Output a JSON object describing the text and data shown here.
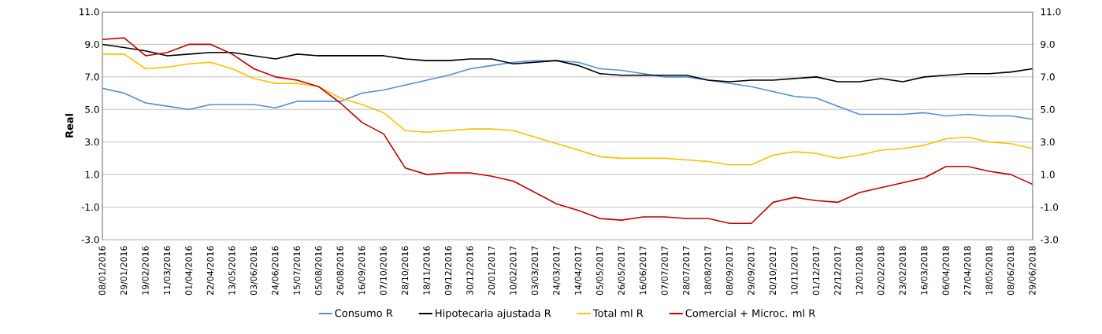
{
  "chart_data": {
    "type": "line",
    "ylabel": "Real",
    "x": [
      "2016-01-08",
      "2016-01-29",
      "2016-02-19",
      "2016-03-11",
      "2016-04-01",
      "2016-04-22",
      "2016-05-13",
      "2016-06-03",
      "2016-06-24",
      "2016-07-15",
      "2016-08-05",
      "2016-08-26",
      "2016-09-16",
      "2016-10-07",
      "2016-10-28",
      "2016-11-18",
      "2016-12-09",
      "2016-12-30",
      "2017-01-20",
      "2017-02-10",
      "2017-03-03",
      "2017-03-24",
      "2017-04-14",
      "2017-05-05",
      "2017-05-26",
      "2017-06-16",
      "2017-07-07",
      "2017-07-28",
      "2017-08-18",
      "2017-09-08",
      "2017-09-29",
      "2017-10-20",
      "2017-11-10",
      "2017-12-01",
      "2017-12-22",
      "2018-01-12",
      "2018-02-02",
      "2018-02-23",
      "2018-03-16",
      "2018-04-06",
      "2018-04-27",
      "2018-05-18",
      "2018-06-08",
      "2018-06-29"
    ],
    "series": [
      {
        "name": "Consumo R",
        "color": "#558ed5",
        "values": [
          6.3,
          6.0,
          5.4,
          5.2,
          5.0,
          5.3,
          5.3,
          5.3,
          5.1,
          5.5,
          5.5,
          5.5,
          6.0,
          6.2,
          6.5,
          6.8,
          7.1,
          7.5,
          7.7,
          7.9,
          8.0,
          8.0,
          7.9,
          7.5,
          7.4,
          7.2,
          7.0,
          7.0,
          6.8,
          6.6,
          6.4,
          6.1,
          5.8,
          5.7,
          5.2,
          4.7,
          4.7,
          4.7,
          4.8,
          4.6,
          4.7,
          4.6,
          4.6,
          4.4
        ]
      },
      {
        "name": "Hipotecaria ajustada R",
        "color": "#000000",
        "values": [
          9.0,
          8.8,
          8.6,
          8.3,
          8.4,
          8.5,
          8.5,
          8.3,
          8.1,
          8.4,
          8.3,
          8.3,
          8.3,
          8.3,
          8.1,
          8.0,
          8.0,
          8.1,
          8.1,
          7.8,
          7.9,
          8.0,
          7.7,
          7.2,
          7.1,
          7.1,
          7.1,
          7.1,
          6.8,
          6.7,
          6.8,
          6.8,
          6.9,
          7.0,
          6.7,
          6.7,
          6.9,
          6.7,
          7.0,
          7.1,
          7.2,
          7.2,
          7.3,
          7.5
        ]
      },
      {
        "name": "Total ml R",
        "color": "#ffc000",
        "values": [
          8.4,
          8.4,
          7.5,
          7.6,
          7.8,
          7.9,
          7.5,
          6.9,
          6.6,
          6.6,
          6.4,
          5.7,
          5.3,
          4.8,
          3.7,
          3.6,
          3.7,
          3.8,
          3.8,
          3.7,
          3.3,
          2.9,
          2.5,
          2.1,
          2.0,
          2.0,
          2.0,
          1.9,
          1.8,
          1.6,
          1.6,
          2.2,
          2.4,
          2.3,
          2.0,
          2.2,
          2.5,
          2.6,
          2.8,
          3.2,
          3.3,
          3.0,
          2.9,
          2.6
        ]
      },
      {
        "name": "Comercial + Microc. ml R",
        "color": "#c00000",
        "values": [
          9.3,
          9.4,
          8.3,
          8.5,
          9.0,
          9.0,
          8.4,
          7.5,
          7.0,
          6.8,
          6.4,
          5.4,
          4.2,
          3.5,
          1.4,
          1.0,
          1.1,
          1.1,
          0.9,
          0.6,
          -0.1,
          -0.8,
          -1.2,
          -1.7,
          -1.8,
          -1.6,
          -1.6,
          -1.7,
          -1.7,
          -2.0,
          -2.0,
          -0.7,
          -0.4,
          -0.6,
          -0.7,
          -0.1,
          0.2,
          0.5,
          0.8,
          1.5,
          1.5,
          1.2,
          1.0,
          0.4
        ]
      }
    ],
    "xlim": [
      "2016-01-08",
      "2018-06-29"
    ],
    "xticks": [
      {
        "value": "2016-01-08",
        "label": "08/01/2016"
      },
      {
        "value": "2016-01-29",
        "label": "29/01/2016"
      },
      {
        "value": "2016-02-19",
        "label": "19/02/2016"
      },
      {
        "value": "2016-03-11",
        "label": "11/03/2016"
      },
      {
        "value": "2016-04-01",
        "label": "01/04/2016"
      },
      {
        "value": "2016-04-22",
        "label": "22/04/2016"
      },
      {
        "value": "2016-05-13",
        "label": "13/05/2016"
      },
      {
        "value": "2016-06-03",
        "label": "03/06/2016"
      },
      {
        "value": "2016-06-24",
        "label": "24/06/2016"
      },
      {
        "value": "2016-07-15",
        "label": "15/07/2016"
      },
      {
        "value": "2016-08-05",
        "label": "05/08/2016"
      },
      {
        "value": "2016-08-26",
        "label": "26/08/2016"
      },
      {
        "value": "2016-09-16",
        "label": "16/09/2016"
      },
      {
        "value": "2016-10-07",
        "label": "07/10/2016"
      },
      {
        "value": "2016-10-28",
        "label": "28/10/2016"
      },
      {
        "value": "2016-11-18",
        "label": "18/11/2016"
      },
      {
        "value": "2016-12-09",
        "label": "09/12/2016"
      },
      {
        "value": "2016-12-30",
        "label": "30/12/2016"
      },
      {
        "value": "2017-01-20",
        "label": "20/01/2017"
      },
      {
        "value": "2017-02-10",
        "label": "10/02/2017"
      },
      {
        "value": "2017-03-03",
        "label": "03/03/2017"
      },
      {
        "value": "2017-03-24",
        "label": "24/03/2017"
      },
      {
        "value": "2017-04-14",
        "label": "14/04/2017"
      },
      {
        "value": "2017-05-05",
        "label": "05/05/2017"
      },
      {
        "value": "2017-05-26",
        "label": "26/05/2017"
      },
      {
        "value": "2017-06-16",
        "label": "16/06/2017"
      },
      {
        "value": "2017-07-07",
        "label": "07/07/2017"
      },
      {
        "value": "2017-07-28",
        "label": "28/07/2017"
      },
      {
        "value": "2017-08-18",
        "label": "18/08/2017"
      },
      {
        "value": "2017-09-08",
        "label": "08/09/2017"
      },
      {
        "value": "2017-09-29",
        "label": "29/09/2017"
      },
      {
        "value": "2017-10-20",
        "label": "20/10/2017"
      },
      {
        "value": "2017-11-10",
        "label": "10/11/2017"
      },
      {
        "value": "2017-12-01",
        "label": "01/12/2017"
      },
      {
        "value": "2017-12-22",
        "label": "22/12/2017"
      },
      {
        "value": "2018-01-12",
        "label": "12/01/2018"
      },
      {
        "value": "2018-02-02",
        "label": "02/02/2018"
      },
      {
        "value": "2018-02-23",
        "label": "23/02/2018"
      },
      {
        "value": "2018-03-16",
        "label": "16/03/2018"
      },
      {
        "value": "2018-04-06",
        "label": "06/04/2018"
      },
      {
        "value": "2018-04-27",
        "label": "27/04/2018"
      },
      {
        "value": "2018-05-18",
        "label": "18/05/2018"
      },
      {
        "value": "2018-06-08",
        "label": "08/06/2018"
      },
      {
        "value": "2018-06-29",
        "label": "29/06/2018"
      }
    ],
    "ylim": [
      -3,
      11
    ],
    "yticks": [
      {
        "value": -3,
        "label": "-3.0"
      },
      {
        "value": -1,
        "label": "-1.0"
      },
      {
        "value": 1,
        "label": "1.0"
      },
      {
        "value": 3,
        "label": "3.0"
      },
      {
        "value": 5,
        "label": "5.0"
      },
      {
        "value": 7,
        "label": "7.0"
      },
      {
        "value": 9,
        "label": "9.0"
      },
      {
        "value": 11,
        "label": "11.0"
      }
    ],
    "y2lim": [
      -3,
      11
    ],
    "y2ticks": [
      {
        "value": -3,
        "label": "-3.0"
      },
      {
        "value": -1,
        "label": "-1.0"
      },
      {
        "value": 1,
        "label": "1.0"
      },
      {
        "value": 3,
        "label": "3.0"
      },
      {
        "value": 5,
        "label": "5.0"
      },
      {
        "value": 7,
        "label": "7.0"
      },
      {
        "value": 9,
        "label": "9.0"
      },
      {
        "value": 11,
        "label": "11.0"
      }
    ],
    "grid": "y",
    "legend": "bottom"
  }
}
